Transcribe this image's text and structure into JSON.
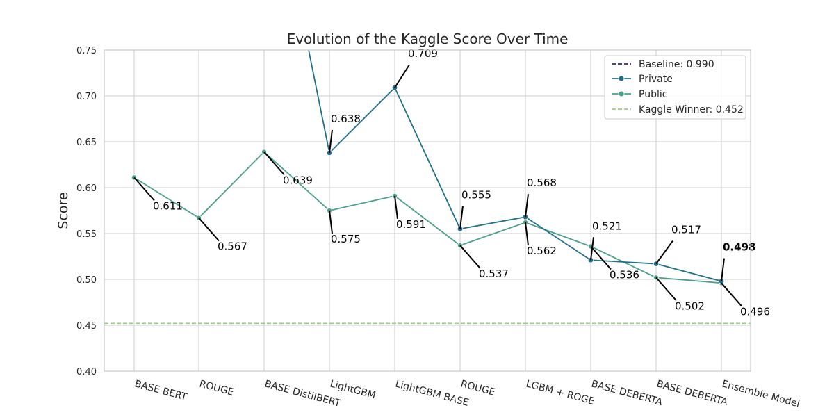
{
  "chart_data": {
    "type": "line",
    "title": "Evolution of the Kaggle Score Over Time",
    "xlabel": "",
    "ylabel": "Score",
    "ylim": [
      0.4,
      0.75
    ],
    "yticks": [
      "0.40",
      "0.45",
      "0.50",
      "0.55",
      "0.60",
      "0.65",
      "0.70",
      "0.75"
    ],
    "grid": true,
    "legend_position": "top-right",
    "categories": [
      "BASE BERT",
      "ROUGE",
      "BASE DistilBERT",
      "LightGBM",
      "LightGBM BASE",
      "ROUGE",
      "LGBM + ROGE",
      "BASE DEBERTA",
      "BASE DEBERTA",
      "Ensemble Model"
    ],
    "series": [
      {
        "name": "Private",
        "color": "#20708a",
        "values": [
          null,
          null,
          null,
          0.638,
          0.709,
          0.555,
          0.568,
          0.521,
          0.517,
          0.498
        ],
        "labels": [
          null,
          null,
          null,
          "0.638",
          "0.709",
          "0.555",
          "0.568",
          "0.521",
          "0.517",
          "0.498"
        ],
        "offscreen_start_value": 0.99
      },
      {
        "name": "Public",
        "color": "#4aa08c",
        "values": [
          0.611,
          0.567,
          0.639,
          0.575,
          0.591,
          0.537,
          0.562,
          0.536,
          0.502,
          0.496
        ],
        "labels": [
          "0.611",
          "0.567",
          "0.639",
          "0.575",
          "0.591",
          "0.537",
          "0.562",
          "0.536",
          "0.502",
          "0.496"
        ]
      }
    ],
    "reference_lines": [
      {
        "name": "Baseline: 0.990",
        "value": 0.99,
        "color": "#2a2d6e",
        "style": "dashed"
      },
      {
        "name": "Kaggle Winner: 0.452",
        "value": 0.452,
        "color": "#9ccb8a",
        "style": "dashed"
      }
    ],
    "highlight": {
      "label": "0.498",
      "color": "#0a8a0a"
    }
  }
}
